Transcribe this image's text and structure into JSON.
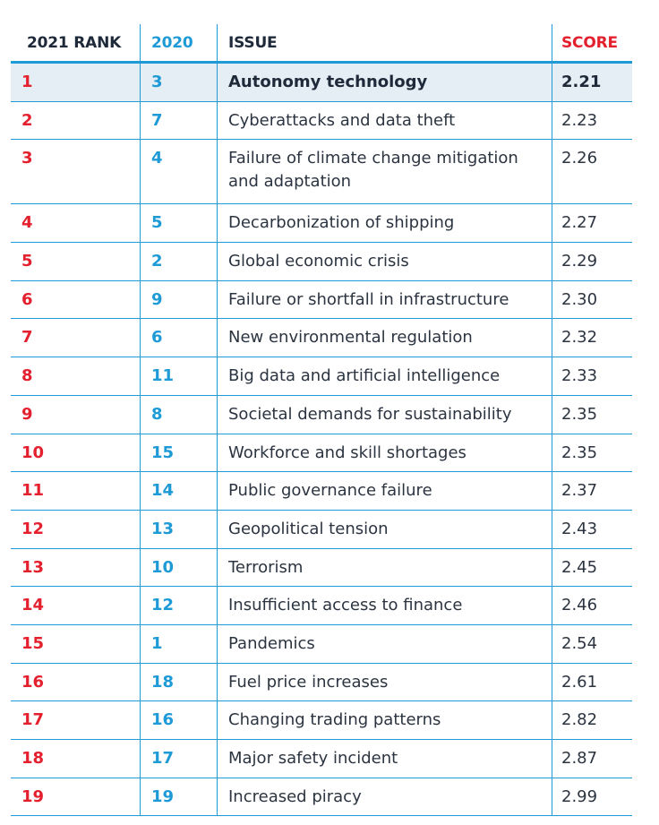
{
  "headers": {
    "rank_2021": "2021 RANK",
    "rank_2020": "2020",
    "issue": "ISSUE",
    "score": "SCORE"
  },
  "colors": {
    "rank_2021": "#e4202e",
    "rank_2020": "#1e9ad6",
    "rule": "#1e9ad6",
    "highlight_row": "#e5eef5"
  },
  "rows": [
    {
      "rank_2021": "1",
      "rank_2020": "3",
      "issue": "Autonomy technology",
      "score": "2.21"
    },
    {
      "rank_2021": "2",
      "rank_2020": "7",
      "issue": "Cyberattacks and data theft",
      "score": "2.23"
    },
    {
      "rank_2021": "3",
      "rank_2020": "4",
      "issue": "Failure of climate change mitigation and adaptation",
      "score": "2.26"
    },
    {
      "rank_2021": "4",
      "rank_2020": "5",
      "issue": "Decarbonization of shipping",
      "score": "2.27"
    },
    {
      "rank_2021": "5",
      "rank_2020": "2",
      "issue": "Global economic crisis",
      "score": "2.29"
    },
    {
      "rank_2021": "6",
      "rank_2020": "9",
      "issue": "Failure or shortfall in infrastructure",
      "score": "2.30"
    },
    {
      "rank_2021": "7",
      "rank_2020": "6",
      "issue": "New environmental regulation",
      "score": "2.32"
    },
    {
      "rank_2021": "8",
      "rank_2020": "11",
      "issue": "Big data and artificial intelligence",
      "score": "2.33"
    },
    {
      "rank_2021": "9",
      "rank_2020": "8",
      "issue": "Societal demands for sustainability",
      "score": "2.35"
    },
    {
      "rank_2021": "10",
      "rank_2020": "15",
      "issue": "Workforce and skill shortages",
      "score": "2.35"
    },
    {
      "rank_2021": "11",
      "rank_2020": "14",
      "issue": "Public governance failure",
      "score": "2.37"
    },
    {
      "rank_2021": "12",
      "rank_2020": "13",
      "issue": "Geopolitical tension",
      "score": "2.43"
    },
    {
      "rank_2021": "13",
      "rank_2020": "10",
      "issue": "Terrorism",
      "score": "2.45"
    },
    {
      "rank_2021": "14",
      "rank_2020": "12",
      "issue": "Insufficient access to finance",
      "score": "2.46"
    },
    {
      "rank_2021": "15",
      "rank_2020": "1",
      "issue": "Pandemics",
      "score": "2.54"
    },
    {
      "rank_2021": "16",
      "rank_2020": "18",
      "issue": "Fuel price increases",
      "score": "2.61"
    },
    {
      "rank_2021": "17",
      "rank_2020": "16",
      "issue": "Changing trading patterns",
      "score": "2.82"
    },
    {
      "rank_2021": "18",
      "rank_2020": "17",
      "issue": "Major safety incident",
      "score": "2.87"
    },
    {
      "rank_2021": "19",
      "rank_2020": "19",
      "issue": "Increased piracy",
      "score": "2.99"
    }
  ]
}
